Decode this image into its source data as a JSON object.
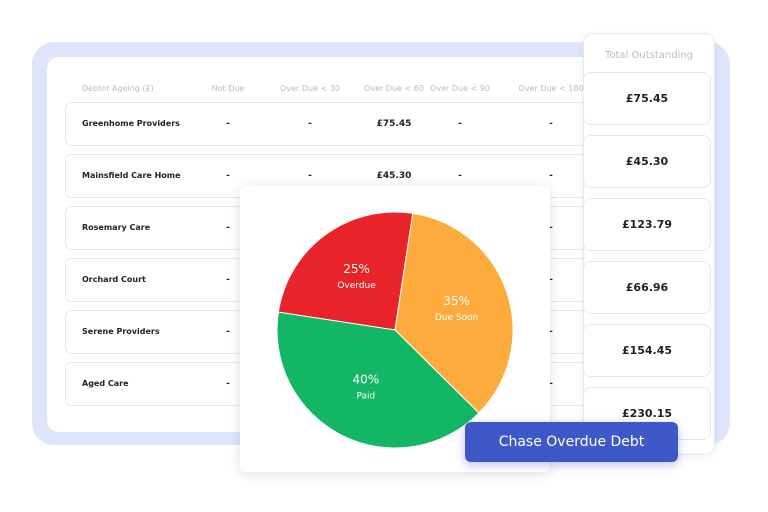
{
  "table": {
    "headers": [
      "Debtor Ageing (£)",
      "Not Due",
      "Over Due < 30",
      "Over Due < 60",
      "Over Due < 90",
      "Over Due < 180"
    ],
    "rows": [
      {
        "name": "Greenhome Providers",
        "cells": [
          "-",
          "-",
          "£75.45",
          "-",
          "-"
        ]
      },
      {
        "name": "Mainsfield Care Home",
        "cells": [
          "-",
          "-",
          "£45.30",
          "-",
          "-"
        ]
      },
      {
        "name": "Rosemary Care",
        "cells": [
          "-",
          null,
          null,
          null,
          "-"
        ]
      },
      {
        "name": "Orchard Court",
        "cells": [
          "-",
          null,
          null,
          null,
          "-"
        ]
      },
      {
        "name": "Serene Providers",
        "cells": [
          "-",
          null,
          null,
          null,
          "-"
        ]
      },
      {
        "name": "Aged Care",
        "cells": [
          "-",
          null,
          null,
          null,
          "-"
        ]
      }
    ]
  },
  "totals": {
    "header": "Total Outstanding",
    "values": [
      "£75.45",
      "£45.30",
      "£123.79",
      "£66.96",
      "£154.45",
      "£230.15"
    ]
  },
  "chart_data": {
    "type": "pie",
    "categories": [
      "Overdue",
      "Due Soon",
      "Paid"
    ],
    "values": [
      25,
      35,
      40
    ],
    "value_labels": [
      "25%",
      "35%",
      "40%"
    ],
    "colors": [
      "#e8242a",
      "#fdab3d",
      "#13b665"
    ]
  },
  "button": {
    "label": "Chase Overdue Debt"
  }
}
